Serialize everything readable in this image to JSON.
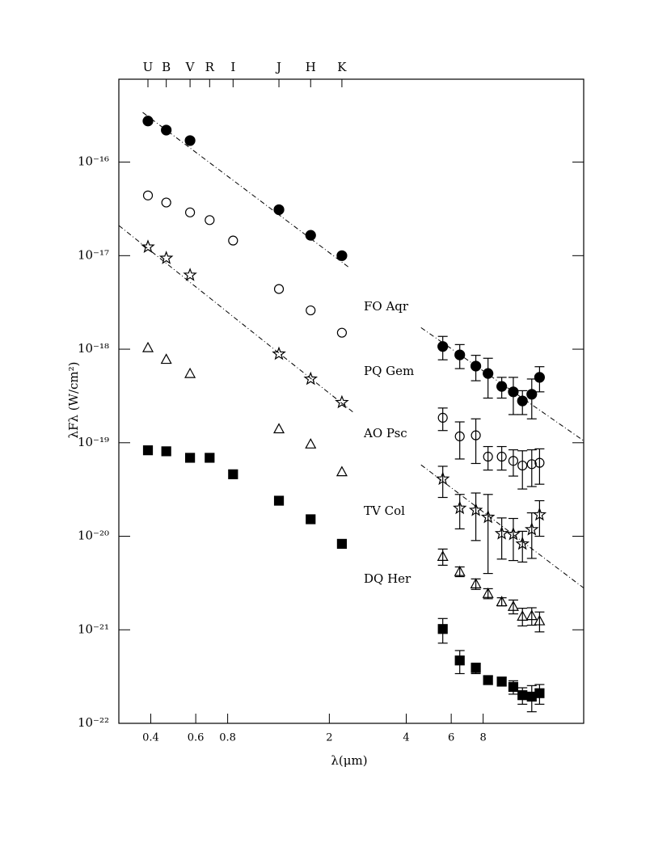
{
  "chart_data": {
    "type": "scatter",
    "x_label": "λ(μm)",
    "y_label": "λFλ (W/cm²)",
    "log_x": true,
    "log_y": true,
    "xlim": [
      0.3,
      19.8
    ],
    "ylim": [
      1e-22,
      7.7e-16
    ],
    "xticks": [
      0.4,
      0.6,
      0.8,
      2,
      4,
      6,
      8
    ],
    "yticks": [
      {
        "value": 1e-16,
        "label": "10⁻¹⁶"
      },
      {
        "value": 1e-17,
        "label": "10⁻¹⁷"
      },
      {
        "value": 1e-18,
        "label": "10⁻¹⁸"
      },
      {
        "value": 1e-19,
        "label": "10⁻¹⁹"
      },
      {
        "value": 1e-20,
        "label": "10⁻²⁰"
      },
      {
        "value": 1e-21,
        "label": "10⁻²¹"
      },
      {
        "value": 1e-22,
        "label": "10⁻²²"
      }
    ],
    "band_labels": {
      "names": [
        "U",
        "B",
        "V",
        "R",
        "I",
        "J",
        "H",
        "K"
      ],
      "x": [
        0.39,
        0.46,
        0.57,
        0.68,
        0.84,
        1.27,
        1.69,
        2.24
      ]
    },
    "series": [
      {
        "name": "FO Aqr",
        "marker": "filled-circle",
        "color": "#000",
        "x": [
          0.39,
          0.46,
          0.57,
          1.27,
          1.69,
          2.24,
          5.56,
          6.48,
          7.49,
          8.36,
          9.46,
          10.5,
          11.4,
          12.4,
          13.3
        ],
        "values": [
          2.75e-16,
          2.2e-16,
          1.7e-16,
          3.1e-17,
          1.65e-17,
          1e-17,
          1.07e-18,
          8.7e-19,
          6.6e-19,
          5.5e-19,
          4e-19,
          3.5e-19,
          2.8e-19,
          3.3e-19,
          5e-19
        ],
        "errors": [
          null,
          null,
          null,
          null,
          null,
          null,
          3e-19,
          2.5e-19,
          2e-19,
          2.5e-19,
          1e-19,
          1.5e-19,
          8e-20,
          1.5e-19,
          1.5e-19
        ]
      },
      {
        "name": "PQ Gem",
        "marker": "open-circle",
        "color": "#000",
        "x": [
          0.39,
          0.46,
          0.57,
          0.68,
          0.84,
          1.27,
          1.69,
          2.24,
          5.56,
          6.48,
          7.49,
          8.36,
          9.46,
          10.5,
          11.4,
          12.4,
          13.3
        ],
        "values": [
          4.4e-17,
          3.7e-17,
          2.9e-17,
          2.4e-17,
          1.45e-17,
          4.4e-18,
          2.6e-18,
          1.5e-18,
          1.85e-19,
          1.17e-19,
          1.2e-19,
          7.1e-20,
          7.1e-20,
          6.4e-20,
          5.7e-20,
          5.9e-20,
          6.1e-20
        ],
        "errors": [
          null,
          null,
          null,
          null,
          null,
          null,
          null,
          null,
          5e-20,
          5e-20,
          6e-20,
          2e-20,
          2e-20,
          2e-20,
          2.5e-20,
          2.5e-20,
          2.5e-20
        ]
      },
      {
        "name": "AO Psc",
        "marker": "star",
        "color": "#000",
        "x": [
          0.39,
          0.46,
          0.57,
          1.27,
          1.69,
          2.24,
          5.56,
          6.48,
          7.49,
          8.36,
          9.46,
          10.5,
          11.4,
          12.4,
          13.3
        ],
        "values": [
          1.24e-17,
          9.4e-18,
          6.2e-18,
          8.9e-19,
          4.8e-19,
          2.7e-19,
          4.1e-20,
          2e-20,
          1.9e-20,
          1.6e-20,
          1.07e-20,
          1.05e-20,
          8.3e-21,
          1.18e-20,
          1.7e-20
        ],
        "errors": [
          null,
          null,
          null,
          null,
          null,
          null,
          1.5e-20,
          8e-21,
          1e-20,
          1.2e-20,
          5e-21,
          5e-21,
          3e-21,
          6e-21,
          7e-21
        ]
      },
      {
        "name": "TV Col",
        "marker": "open-triangle",
        "color": "#000",
        "x": [
          0.39,
          0.46,
          0.57,
          1.27,
          1.69,
          2.24,
          5.56,
          6.48,
          7.49,
          8.36,
          9.46,
          10.5,
          11.4,
          12.4,
          13.3
        ],
        "values": [
          1.04e-18,
          7.8e-19,
          5.5e-19,
          1.41e-19,
          9.7e-20,
          4.9e-20,
          6.1e-21,
          4.2e-21,
          3.1e-21,
          2.45e-21,
          2e-21,
          1.78e-21,
          1.4e-21,
          1.42e-21,
          1.25e-21
        ],
        "errors": [
          null,
          null,
          null,
          null,
          null,
          null,
          1.2e-21,
          5e-22,
          4e-22,
          3e-22,
          2e-22,
          3e-22,
          3e-22,
          3e-22,
          3e-22
        ]
      },
      {
        "name": "DQ Her",
        "marker": "filled-square",
        "color": "#000",
        "x": [
          0.39,
          0.46,
          0.57,
          0.68,
          0.84,
          1.27,
          1.69,
          2.24,
          5.56,
          6.48,
          7.49,
          8.36,
          9.46,
          10.5,
          11.4,
          12.4,
          13.3
        ],
        "values": [
          8.3e-20,
          8.1e-20,
          6.9e-20,
          6.9e-20,
          4.6e-20,
          2.4e-20,
          1.52e-20,
          8.3e-21,
          1.02e-21,
          4.7e-22,
          3.9e-22,
          2.9e-22,
          2.8e-22,
          2.45e-22,
          2e-22,
          1.93e-22,
          2.1e-22
        ],
        "errors": [
          null,
          null,
          null,
          null,
          null,
          null,
          null,
          null,
          3e-22,
          1.3e-22,
          5e-23,
          3e-23,
          3e-23,
          4e-23,
          4e-23,
          6e-23,
          5e-23
        ]
      }
    ],
    "fits": [
      {
        "x": [
          0.372,
          2.37
        ],
        "values": [
          3.4e-16,
          7.6e-18
        ]
      },
      {
        "x": [
          4.57,
          19.8
        ],
        "values": [
          1.7e-18,
          1.05e-19
        ]
      },
      {
        "x": [
          0.3,
          2.49
        ],
        "values": [
          2.1e-17,
          2.1e-19
        ]
      },
      {
        "x": [
          4.57,
          19.8
        ],
        "values": [
          5.8e-20,
          2.8e-21
        ]
      }
    ]
  }
}
